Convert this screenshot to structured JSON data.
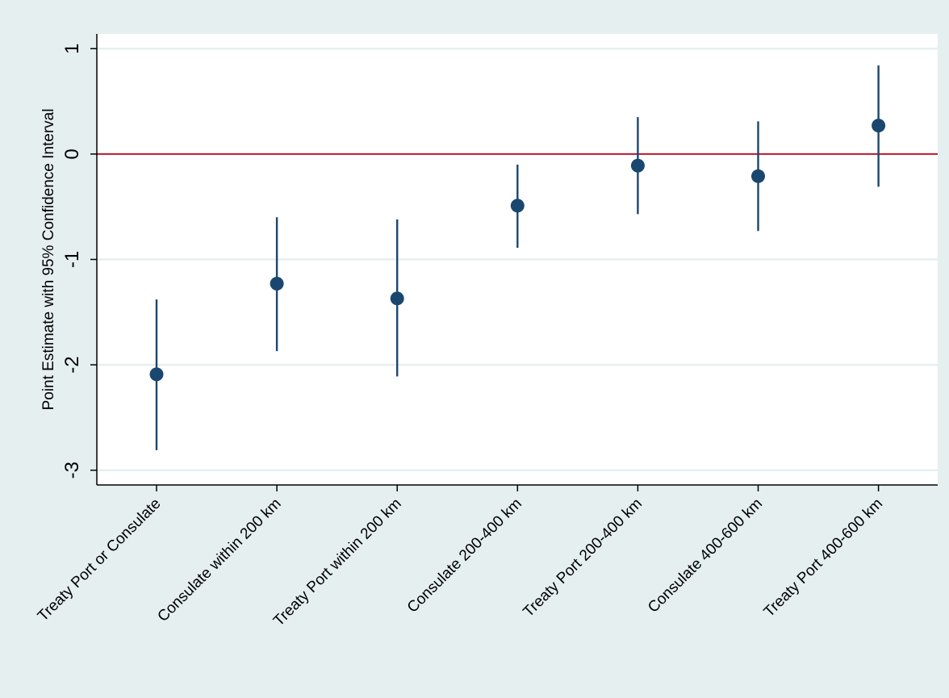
{
  "chart_data": {
    "type": "scatter",
    "subtype": "coefficient-plot-with-error-bars",
    "title": "",
    "xlabel": "",
    "ylabel": "Point Estimate with 95% Confidence Interval",
    "categories": [
      "Treaty Port or Consulate",
      "Consulate within 200 km",
      "Treaty Port within 200 km",
      "Consulate 200-400 km",
      "Treaty Port 200-400 km",
      "Consulate 400-600 km",
      "Treaty Port 400-600 km"
    ],
    "series": [
      {
        "estimates": [
          -2.09,
          -1.23,
          -1.37,
          -0.49,
          -0.11,
          -0.21,
          0.27
        ],
        "ci_lower": [
          -2.81,
          -1.87,
          -2.11,
          -0.89,
          -0.57,
          -0.73,
          -0.31
        ],
        "ci_upper": [
          -1.38,
          -0.6,
          -0.62,
          -0.1,
          0.35,
          0.31,
          0.84
        ]
      }
    ],
    "yticks": [
      -3,
      -2,
      -1,
      0,
      1
    ],
    "ytick_labels": [
      "-3",
      "-2",
      "-1",
      "0",
      "1"
    ],
    "ylim": [
      -3.14,
      1.14
    ],
    "reference_line": {
      "y": 0
    },
    "grid": "horizontal",
    "legend": "none",
    "colors": {
      "outer_background": "#e5eff0",
      "plot_background": "#ffffff",
      "gridline": "#e5eff0",
      "marker": "#1a476f",
      "error_bar": "#1a476f",
      "reference_line": "#c0172e",
      "axis": "#000000"
    }
  }
}
